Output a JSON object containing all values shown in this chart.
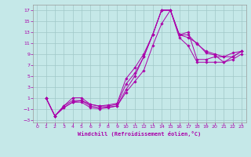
{
  "xlabel": "Windchill (Refroidissement éolien,°C)",
  "background_color": "#c5e8e8",
  "line_color": "#aa00aa",
  "grid_color": "#a0c8c8",
  "xlim": [
    -0.5,
    23.5
  ],
  "ylim": [
    -3.5,
    18.0
  ],
  "xticks": [
    0,
    1,
    2,
    3,
    4,
    5,
    6,
    7,
    8,
    9,
    10,
    11,
    12,
    13,
    14,
    15,
    16,
    17,
    18,
    19,
    20,
    21,
    22,
    23
  ],
  "yticks": [
    -3,
    -1,
    1,
    3,
    5,
    7,
    9,
    11,
    13,
    15,
    17
  ],
  "lines": [
    {
      "x": [
        1,
        2,
        3,
        4,
        5,
        6,
        7,
        8,
        9,
        10,
        11,
        12,
        13,
        14,
        15,
        16,
        17,
        18,
        19,
        20,
        21,
        22,
        23
      ],
      "y": [
        1,
        -2.3,
        -0.5,
        0.5,
        0.5,
        -0.5,
        -0.8,
        -0.7,
        -0.5,
        2.5,
        5.0,
        8.5,
        12.5,
        17,
        17,
        12.5,
        12,
        11,
        9.2,
        8.8,
        7.5,
        8.5,
        9.5
      ]
    },
    {
      "x": [
        1,
        2,
        3,
        4,
        5,
        6,
        7,
        8,
        9,
        10,
        11,
        12,
        13,
        14,
        15,
        16,
        17,
        18,
        19,
        20,
        21,
        22,
        23
      ],
      "y": [
        1,
        -2.3,
        -0.8,
        0.2,
        0.5,
        -0.2,
        -0.5,
        -0.5,
        -0.2,
        3.5,
        5.5,
        8.5,
        12.5,
        17,
        17,
        12.5,
        12.5,
        10.8,
        9.5,
        9.0,
        8.5,
        9.2,
        9.5
      ]
    },
    {
      "x": [
        1,
        2,
        3,
        4,
        5,
        6,
        7,
        8,
        9,
        10,
        11,
        12,
        13,
        14,
        15,
        16,
        17,
        18,
        19,
        20,
        21,
        22,
        23
      ],
      "y": [
        1,
        -2.3,
        -0.5,
        1.0,
        1.0,
        -0.2,
        -0.5,
        -0.3,
        0.0,
        4.5,
        6.5,
        9.0,
        12.5,
        17,
        17,
        12.5,
        13.0,
        8.0,
        8.0,
        8.5,
        8.5,
        8.5,
        9.5
      ]
    },
    {
      "x": [
        1,
        2,
        3,
        4,
        5,
        6,
        7,
        8,
        9,
        10,
        11,
        12,
        13,
        14,
        15,
        16,
        17,
        18,
        19,
        20,
        21,
        22,
        23
      ],
      "y": [
        1,
        -2.3,
        -0.8,
        0.2,
        0.2,
        -0.8,
        -1.0,
        -0.8,
        -0.5,
        2.0,
        4.0,
        6.0,
        10.5,
        14.5,
        17,
        12,
        10.5,
        7.5,
        7.5,
        7.5,
        7.5,
        8.0,
        9.0
      ]
    }
  ]
}
